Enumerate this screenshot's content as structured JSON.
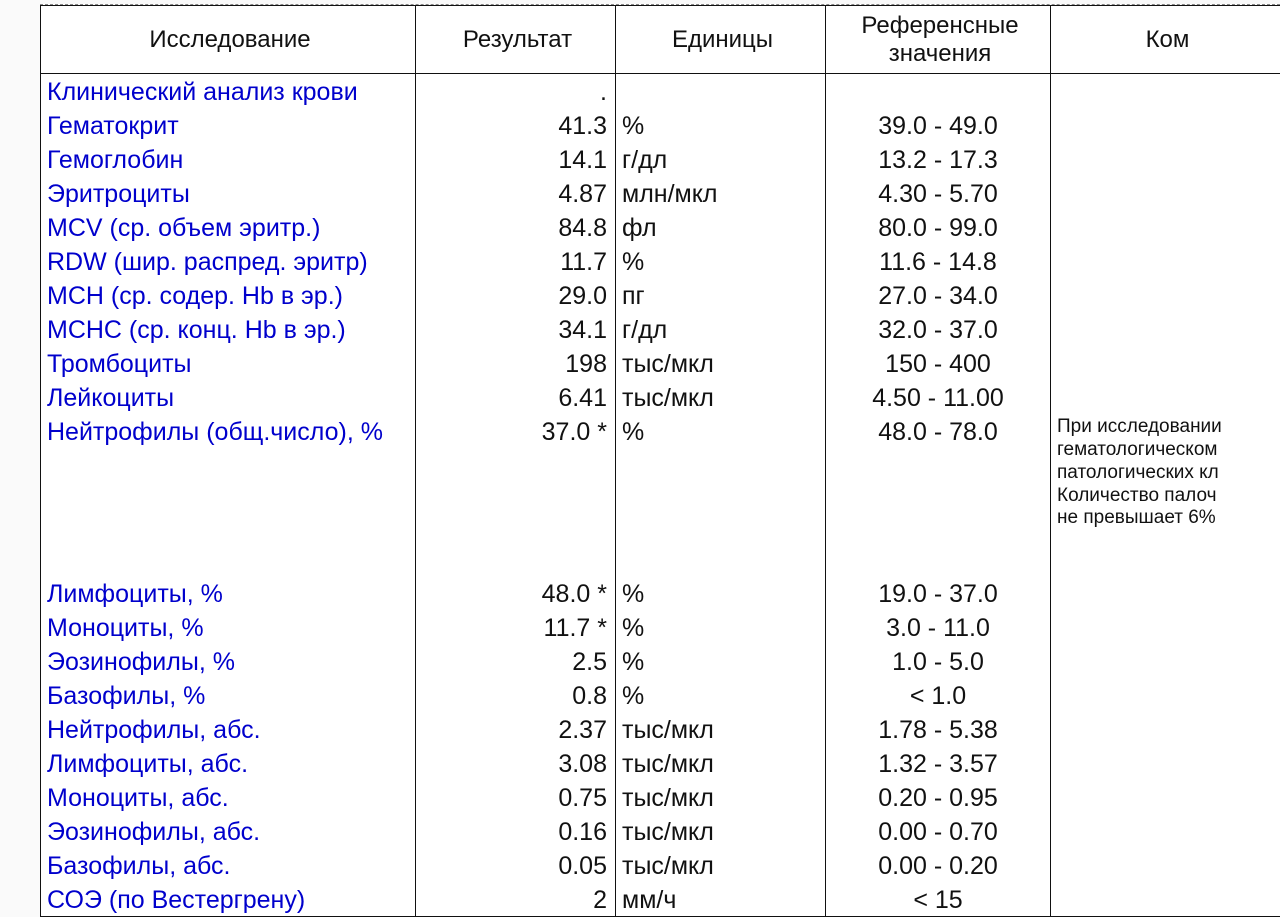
{
  "table": {
    "header": {
      "test": "Исследование",
      "result": "Результат",
      "units": "Единицы",
      "ref": "Референсные значения",
      "comment": "Ком"
    },
    "colors": {
      "test_text": "#0000cc",
      "value_text": "#111111",
      "border": "#111111",
      "background": "#ffffff"
    },
    "font_sizes": {
      "header": 24,
      "body": 25,
      "comment": 19
    },
    "rows": [
      {
        "test": "Клинический анализ крови",
        "result": ".",
        "units": "",
        "ref": "",
        "comment": ""
      },
      {
        "test": "Гематокрит",
        "result": "41.3",
        "units": "%",
        "ref": "39.0 - 49.0",
        "comment": ""
      },
      {
        "test": "Гемоглобин",
        "result": "14.1",
        "units": "г/дл",
        "ref": "13.2 - 17.3",
        "comment": ""
      },
      {
        "test": "Эритроциты",
        "result": "4.87",
        "units": "млн/мкл",
        "ref": "4.30 - 5.70",
        "comment": ""
      },
      {
        "test": "MCV (ср. объем эритр.)",
        "result": "84.8",
        "units": "фл",
        "ref": "80.0 - 99.0",
        "comment": ""
      },
      {
        "test": "RDW (шир. распред. эритр)",
        "result": "11.7",
        "units": "%",
        "ref": "11.6 - 14.8",
        "comment": ""
      },
      {
        "test": "MCH (ср. содер. Hb в эр.)",
        "result": "29.0",
        "units": "пг",
        "ref": "27.0 - 34.0",
        "comment": ""
      },
      {
        "test": "МСНС (ср. конц. Hb в эр.)",
        "result": "34.1",
        "units": "г/дл",
        "ref": "32.0 - 37.0",
        "comment": ""
      },
      {
        "test": "Тромбоциты",
        "result": "198",
        "units": "тыс/мкл",
        "ref": "150 - 400",
        "comment": ""
      },
      {
        "test": "Лейкоциты",
        "result": "6.41",
        "units": "тыс/мкл",
        "ref": "4.50 - 11.00",
        "comment": ""
      },
      {
        "test": "Нейтрофилы (общ.число), %",
        "result": "37.0 *",
        "units": "%",
        "ref": "48.0 - 78.0",
        "comment": "При исследовании\nгематологическом\nпатологических кл\nКоличество палоч\nне превышает 6%"
      },
      {
        "spacer": true
      },
      {
        "test": "Лимфоциты, %",
        "result": "48.0 *",
        "units": "%",
        "ref": "19.0 - 37.0",
        "comment": ""
      },
      {
        "test": "Моноциты, %",
        "result": "11.7 *",
        "units": "%",
        "ref": "3.0 - 11.0",
        "comment": ""
      },
      {
        "test": "Эозинофилы, %",
        "result": "2.5",
        "units": "%",
        "ref": "1.0 - 5.0",
        "comment": ""
      },
      {
        "test": "Базофилы, %",
        "result": "0.8",
        "units": "%",
        "ref": "< 1.0",
        "comment": ""
      },
      {
        "test": "Нейтрофилы, абс.",
        "result": "2.37",
        "units": "тыс/мкл",
        "ref": "1.78 - 5.38",
        "comment": ""
      },
      {
        "test": "Лимфоциты, абс.",
        "result": "3.08",
        "units": "тыс/мкл",
        "ref": "1.32 - 3.57",
        "comment": ""
      },
      {
        "test": "Моноциты, абс.",
        "result": "0.75",
        "units": "тыс/мкл",
        "ref": "0.20 - 0.95",
        "comment": ""
      },
      {
        "test": "Эозинофилы, абс.",
        "result": "0.16",
        "units": "тыс/мкл",
        "ref": "0.00 - 0.70",
        "comment": ""
      },
      {
        "test": "Базофилы, абс.",
        "result": "0.05",
        "units": "тыс/мкл",
        "ref": "0.00 - 0.20",
        "comment": ""
      },
      {
        "test": "СОЭ (по Вестергрену)",
        "result": "2",
        "units": "мм/ч",
        "ref": "< 15",
        "comment": ""
      }
    ]
  }
}
